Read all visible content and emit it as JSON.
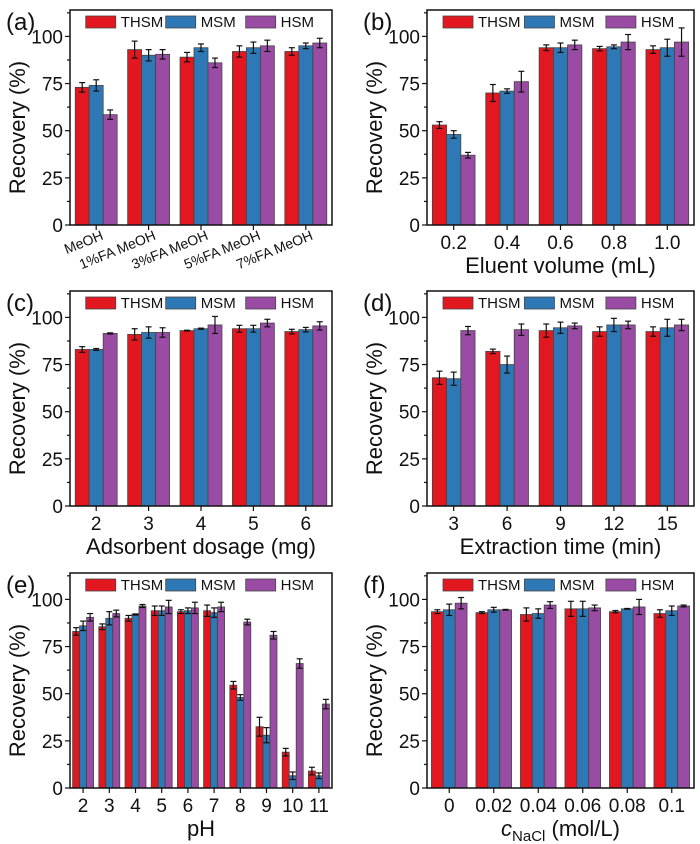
{
  "figure": {
    "series_names": [
      "THSM",
      "MSM",
      "HSM"
    ],
    "colors": {
      "THSM": "#e3171f",
      "MSM": "#2f78b6",
      "HSM": "#9a4ba4"
    }
  },
  "chart_data": [
    {
      "panel": "(a)",
      "type": "bar",
      "title": "",
      "xlabel": "",
      "ylabel": "Recovery (%)",
      "ylim": [
        0,
        114
      ],
      "yticks": [
        0,
        25,
        50,
        75,
        100
      ],
      "categories": [
        "MeOH",
        "1%FA MeOH",
        "3%FA MeOH",
        "5%FA MeOH",
        "7%FA MeOH"
      ],
      "rotated_xticks": true,
      "legend": "top",
      "series": [
        {
          "name": "THSM",
          "values": [
            73,
            93,
            89,
            92,
            92
          ],
          "errors": [
            2.5,
            4.5,
            2.5,
            3,
            2
          ]
        },
        {
          "name": "MSM",
          "values": [
            74,
            90,
            94,
            94,
            95
          ],
          "errors": [
            3,
            3,
            2,
            3,
            1.5
          ]
        },
        {
          "name": "HSM",
          "values": [
            58.5,
            90.5,
            86,
            95,
            96.5
          ],
          "errors": [
            2.5,
            2.5,
            2.5,
            3,
            2.5
          ]
        }
      ]
    },
    {
      "panel": "(b)",
      "type": "bar",
      "title": "",
      "xlabel": "Eluent volume (mL)",
      "ylabel": "Recovery (%)",
      "ylim": [
        0,
        114
      ],
      "yticks": [
        0,
        25,
        50,
        75,
        100
      ],
      "categories": [
        "0.2",
        "0.4",
        "0.6",
        "0.8",
        "1.0"
      ],
      "legend": "top",
      "series": [
        {
          "name": "THSM",
          "values": [
            53,
            70,
            94,
            93.5,
            93
          ],
          "errors": [
            1.8,
            4.5,
            1.5,
            1.2,
            2
          ]
        },
        {
          "name": "MSM",
          "values": [
            48,
            71,
            94,
            94.5,
            94
          ],
          "errors": [
            2,
            1.2,
            2.5,
            1,
            4.5
          ]
        },
        {
          "name": "HSM",
          "values": [
            37,
            76,
            95.5,
            97,
            97
          ],
          "errors": [
            1.5,
            5.5,
            2.5,
            4,
            7.5
          ]
        }
      ]
    },
    {
      "panel": "(c)",
      "type": "bar",
      "title": "",
      "xlabel": "Adsorbent dosage (mg)",
      "ylabel": "Recovery (%)",
      "ylim": [
        0,
        114
      ],
      "yticks": [
        0,
        25,
        50,
        75,
        100
      ],
      "categories": [
        "2",
        "3",
        "4",
        "5",
        "6"
      ],
      "legend": "top",
      "series": [
        {
          "name": "THSM",
          "values": [
            83,
            91,
            93,
            94,
            92.5
          ],
          "errors": [
            1.5,
            3,
            0.2,
            1.8,
            1.2
          ]
        },
        {
          "name": "MSM",
          "values": [
            83,
            92,
            94,
            94,
            93.5
          ],
          "errors": [
            0.5,
            3,
            0.3,
            1.8,
            1.2
          ]
        },
        {
          "name": "HSM",
          "values": [
            91.5,
            92,
            96,
            97,
            95.5
          ],
          "errors": [
            0.3,
            2.5,
            4.5,
            2,
            2.2
          ]
        }
      ]
    },
    {
      "panel": "(d)",
      "type": "bar",
      "title": "",
      "xlabel": "Extraction time (min)",
      "ylabel": "Recovery (%)",
      "ylim": [
        0,
        114
      ],
      "yticks": [
        0,
        25,
        50,
        75,
        100
      ],
      "categories": [
        "3",
        "6",
        "9",
        "12",
        "15"
      ],
      "legend": "top",
      "series": [
        {
          "name": "THSM",
          "values": [
            68,
            82,
            93,
            92.5,
            92.5
          ],
          "errors": [
            3.5,
            1.2,
            3.5,
            2.5,
            2.5
          ]
        },
        {
          "name": "MSM",
          "values": [
            67.5,
            75,
            94.5,
            96,
            94.5
          ],
          "errors": [
            3.5,
            4.5,
            3,
            3.5,
            4.5
          ]
        },
        {
          "name": "HSM",
          "values": [
            93,
            93.5,
            95.5,
            96,
            96
          ],
          "errors": [
            2.2,
            3,
            1.5,
            2,
            3
          ]
        }
      ]
    },
    {
      "panel": "(e)",
      "type": "bar",
      "title": "",
      "xlabel": "pH",
      "ylabel": "Recovery (%)",
      "ylim": [
        0,
        114
      ],
      "yticks": [
        0,
        25,
        50,
        75,
        100
      ],
      "categories": [
        "2",
        "3",
        "4",
        "5",
        "6",
        "7",
        "8",
        "9",
        "10",
        "11"
      ],
      "legend": "top",
      "series": [
        {
          "name": "THSM",
          "values": [
            83,
            85.5,
            90,
            94,
            93.5,
            94,
            54.5,
            32.5,
            19,
            9
          ],
          "errors": [
            2,
            1.5,
            1.5,
            2.5,
            1,
            3,
            2,
            5,
            2,
            2
          ]
        },
        {
          "name": "MSM",
          "values": [
            86,
            90,
            92,
            94,
            94,
            93,
            48,
            28,
            6.5,
            6.5
          ],
          "errors": [
            2.5,
            3.5,
            0.3,
            2.5,
            1.5,
            2.5,
            1.5,
            4,
            2,
            1.5
          ]
        },
        {
          "name": "HSM",
          "values": [
            90.5,
            92.5,
            96.5,
            96,
            95.5,
            96,
            88,
            81,
            66,
            44.5
          ],
          "errors": [
            2,
            1.8,
            0.8,
            3.5,
            3,
            2.5,
            1.5,
            2,
            2.5,
            2.5
          ]
        }
      ]
    },
    {
      "panel": "(f)",
      "type": "bar",
      "title": "",
      "xlabel": "c_NaCl (mol/L)",
      "xlabel_main": "c",
      "xlabel_sub": "NaCl",
      "xlabel_rest": " (mol/L)",
      "ylabel": "Recovery (%)",
      "ylim": [
        0,
        114
      ],
      "yticks": [
        0,
        25,
        50,
        75,
        100
      ],
      "categories": [
        "0",
        "0.02",
        "0.04",
        "0.06",
        "0.08",
        "0.1"
      ],
      "legend": "top",
      "series": [
        {
          "name": "THSM",
          "values": [
            93.5,
            93,
            92,
            95,
            93.5,
            92.5
          ],
          "errors": [
            1,
            0.5,
            3.5,
            4,
            0.6,
            2
          ]
        },
        {
          "name": "MSM",
          "values": [
            94.5,
            94.5,
            92.5,
            95,
            95,
            94
          ],
          "errors": [
            3,
            1.3,
            2.5,
            4,
            0.2,
            2.5
          ]
        },
        {
          "name": "HSM",
          "values": [
            98,
            94.5,
            97,
            95.5,
            96,
            96.5
          ],
          "errors": [
            3,
            0.2,
            1.8,
            1.5,
            4,
            0.5
          ]
        }
      ]
    }
  ]
}
